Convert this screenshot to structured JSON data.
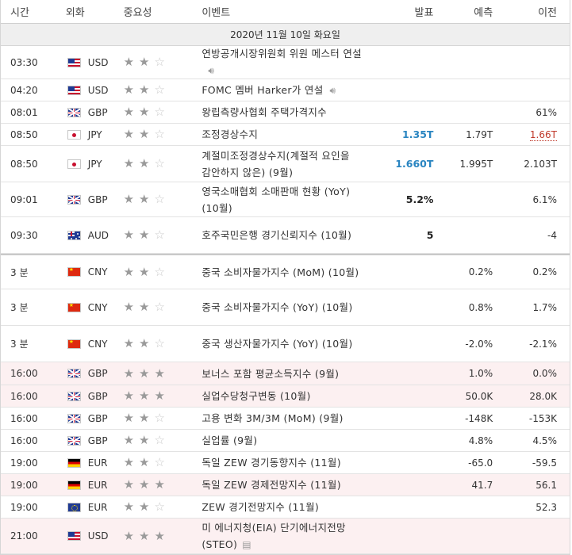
{
  "header": {
    "time": "시간",
    "currency": "외화",
    "importance": "중요성",
    "event": "이벤트",
    "actual": "발표",
    "forecast": "예측",
    "previous": "이전"
  },
  "date_label": "2020년 11월 10일 화요일",
  "rows": [
    {
      "time": "03:30",
      "flag": "us",
      "cur": "USD",
      "stars": 2,
      "event": "연방공개시장위원회 위원 메스터 연설",
      "icon": "speaker",
      "actual": "",
      "forecast": "",
      "previous": "",
      "h": 42
    },
    {
      "time": "04:20",
      "flag": "us",
      "cur": "USD",
      "stars": 2,
      "event": "FOMC 멤버 Harker가 연설",
      "icon": "speaker",
      "actual": "",
      "forecast": "",
      "previous": "",
      "h": 28
    },
    {
      "time": "08:01",
      "flag": "gb",
      "cur": "GBP",
      "stars": 2,
      "event": "왕립측량사협회 주택가격지수",
      "icon": "",
      "actual": "",
      "forecast": "",
      "previous": "61%",
      "h": 28
    },
    {
      "time": "08:50",
      "flag": "jp",
      "cur": "JPY",
      "stars": 2,
      "event": "조정경상수지",
      "icon": "",
      "actual": "1.35T",
      "actualStyle": "blue",
      "forecast": "1.79T",
      "previous": "1.66T",
      "prevRed": true,
      "h": 28
    },
    {
      "time": "08:50",
      "flag": "jp",
      "cur": "JPY",
      "stars": 2,
      "event": "계절미조정경상수지(계절적 요인을 감안하지 않은) (9월)",
      "icon": "",
      "actual": "1.660T",
      "actualStyle": "blue",
      "forecast": "1.995T",
      "previous": "2.103T",
      "h": 46
    },
    {
      "time": "09:01",
      "flag": "gb",
      "cur": "GBP",
      "stars": 2,
      "event": "영국소매협회 소매판매 현황 (YoY) (10월)",
      "icon": "",
      "actual": "5.2%",
      "actualStyle": "dark",
      "forecast": "",
      "previous": "6.1%",
      "h": 44
    },
    {
      "time": "09:30",
      "flag": "au",
      "cur": "AUD",
      "stars": 2,
      "event": "호주국민은행 경기신뢰지수 (10월)",
      "icon": "",
      "actual": "5",
      "actualStyle": "dark",
      "forecast": "",
      "previous": "-4",
      "h": 46
    },
    {
      "time": "3 분",
      "flag": "cn",
      "cur": "CNY",
      "stars": 2,
      "event": "중국 소비자물가지수 (MoM) (10월)",
      "icon": "",
      "actual": "",
      "forecast": "0.2%",
      "previous": "0.2%",
      "h": 45,
      "sep": true
    },
    {
      "time": "3 분",
      "flag": "cn",
      "cur": "CNY",
      "stars": 2,
      "event": "중국 소비자물가지수 (YoY) (10월)",
      "icon": "",
      "actual": "",
      "forecast": "0.8%",
      "previous": "1.7%",
      "h": 46
    },
    {
      "time": "3 분",
      "flag": "cn",
      "cur": "CNY",
      "stars": 2,
      "event": "중국 생산자물가지수 (YoY) (10월)",
      "icon": "",
      "actual": "",
      "forecast": "-2.0%",
      "previous": "-2.1%",
      "h": 46
    },
    {
      "time": "16:00",
      "flag": "gb",
      "cur": "GBP",
      "stars": 3,
      "event": "보너스 포함 평균소득지수 (9월)",
      "icon": "",
      "actual": "",
      "forecast": "1.0%",
      "previous": "0.0%",
      "h": 29,
      "hl": true
    },
    {
      "time": "16:00",
      "flag": "gb",
      "cur": "GBP",
      "stars": 3,
      "event": "실업수당청구변동 (10월)",
      "icon": "",
      "actual": "",
      "forecast": "50.0K",
      "previous": "28.0K",
      "h": 28,
      "hl": true
    },
    {
      "time": "16:00",
      "flag": "gb",
      "cur": "GBP",
      "stars": 2,
      "event": "고용 변화 3M/3M (MoM) (9월)",
      "icon": "",
      "actual": "",
      "forecast": "-148K",
      "previous": "-153K",
      "h": 28
    },
    {
      "time": "16:00",
      "flag": "gb",
      "cur": "GBP",
      "stars": 2,
      "event": "실업률 (9월)",
      "icon": "",
      "actual": "",
      "forecast": "4.8%",
      "previous": "4.5%",
      "h": 28
    },
    {
      "time": "19:00",
      "flag": "de",
      "cur": "EUR",
      "stars": 2,
      "event": "독일 ZEW 경기동향지수 (11월)",
      "icon": "",
      "actual": "",
      "forecast": "-65.0",
      "previous": "-59.5",
      "h": 28
    },
    {
      "time": "19:00",
      "flag": "de",
      "cur": "EUR",
      "stars": 3,
      "event": "독일 ZEW 경제전망지수 (11월)",
      "icon": "",
      "actual": "",
      "forecast": "41.7",
      "previous": "56.1",
      "h": 28,
      "hl": true
    },
    {
      "time": "19:00",
      "flag": "eu",
      "cur": "EUR",
      "stars": 2,
      "event": "ZEW 경기전망지수 (11월)",
      "icon": "",
      "actual": "",
      "forecast": "",
      "previous": "52.3",
      "h": 28
    },
    {
      "time": "21:00",
      "flag": "us",
      "cur": "USD",
      "stars": 3,
      "event": "미 에너지청(EIA) 단기에너지전망 (STEO)",
      "icon": "doc",
      "actual": "",
      "forecast": "",
      "previous": "",
      "h": 45,
      "hl": true
    }
  ]
}
